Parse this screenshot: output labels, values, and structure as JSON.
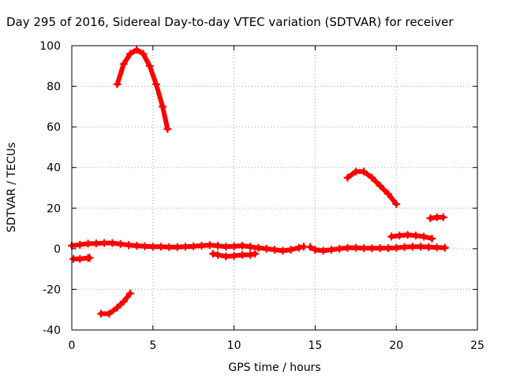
{
  "chart_data": {
    "type": "scatter",
    "title": "Day 295 of 2016, Sidereal Day-to-day VTEC variation (SDTVAR) for receiver",
    "xlabel": "GPS time / hours",
    "ylabel": "SDTVAR / TECUs",
    "xlim": [
      0,
      25
    ],
    "ylim": [
      -40,
      100
    ],
    "xticks": [
      0,
      5,
      10,
      15,
      20,
      25
    ],
    "yticks": [
      -40,
      -20,
      0,
      20,
      40,
      60,
      80,
      100
    ],
    "xtick_labels": [
      "0",
      "5",
      "10",
      "15",
      "20",
      "25"
    ],
    "ytick_labels": [
      "-40",
      "-20",
      "0",
      "20",
      "40",
      "60",
      "80",
      "100"
    ],
    "grid": true,
    "marker_color": "#ff0000",
    "series": [
      {
        "x": [
          2.8,
          3.2,
          3.6,
          4.0,
          4.4,
          4.8,
          5.2,
          5.6,
          5.9
        ],
        "y": [
          81,
          91,
          96,
          98,
          96,
          90,
          81,
          70,
          59
        ]
      },
      {
        "x": [
          0.0,
          0.5,
          1.0,
          1.5,
          2.0,
          2.5,
          3.0,
          3.5,
          4.0,
          4.5,
          5.0,
          5.5,
          6.0,
          6.5,
          7.0,
          7.5,
          8.0,
          8.5,
          9.0,
          9.5,
          10.0,
          10.5,
          11.0,
          11.5,
          12.0,
          12.5,
          13.0,
          13.5,
          14.0,
          14.3
        ],
        "y": [
          1.5,
          2.0,
          2.5,
          2.6,
          2.8,
          2.8,
          2.3,
          1.8,
          1.5,
          1.2,
          1.0,
          1.0,
          0.8,
          0.8,
          1.0,
          1.2,
          1.5,
          1.8,
          1.5,
          1.0,
          1.2,
          1.5,
          1.0,
          0.5,
          0.0,
          -0.5,
          -1.0,
          -0.5,
          0.5,
          1.0
        ]
      },
      {
        "x": [
          14.7,
          15.0,
          15.5,
          16.0,
          16.5,
          17.0,
          17.5,
          18.0,
          18.5,
          19.0,
          19.5,
          20.0,
          20.5,
          21.0,
          21.5,
          22.0,
          22.5,
          23.0
        ],
        "y": [
          0.8,
          -0.5,
          -1.0,
          -0.5,
          0.0,
          0.5,
          0.5,
          0.3,
          0.2,
          0.3,
          0.3,
          0.5,
          0.8,
          1.0,
          1.0,
          0.8,
          0.6,
          0.5
        ]
      },
      {
        "x": [
          0.1,
          0.5,
          1.0,
          1.1
        ],
        "y": [
          -5,
          -5,
          -4.5,
          -4.5
        ]
      },
      {
        "x": [
          8.7,
          9.0,
          9.5,
          10.0,
          10.5,
          11.0,
          11.3
        ],
        "y": [
          -2.5,
          -3.0,
          -3.8,
          -3.5,
          -3.0,
          -3.0,
          -2.5
        ]
      },
      {
        "x": [
          1.8,
          2.3,
          2.8,
          3.2,
          3.6
        ],
        "y": [
          -32,
          -32,
          -29,
          -26,
          -22
        ]
      },
      {
        "x": [
          17.0,
          17.5,
          18.0,
          18.5,
          19.0,
          19.5,
          20.0
        ],
        "y": [
          35,
          38,
          38,
          35,
          31,
          27,
          22
        ]
      },
      {
        "x": [
          19.7,
          20.2,
          20.7,
          21.2,
          21.7,
          22.2
        ],
        "y": [
          6,
          6.5,
          6.8,
          6.5,
          6,
          5
        ]
      },
      {
        "x": [
          22.1,
          22.5,
          22.9
        ],
        "y": [
          15,
          15.5,
          15.5
        ]
      }
    ]
  }
}
